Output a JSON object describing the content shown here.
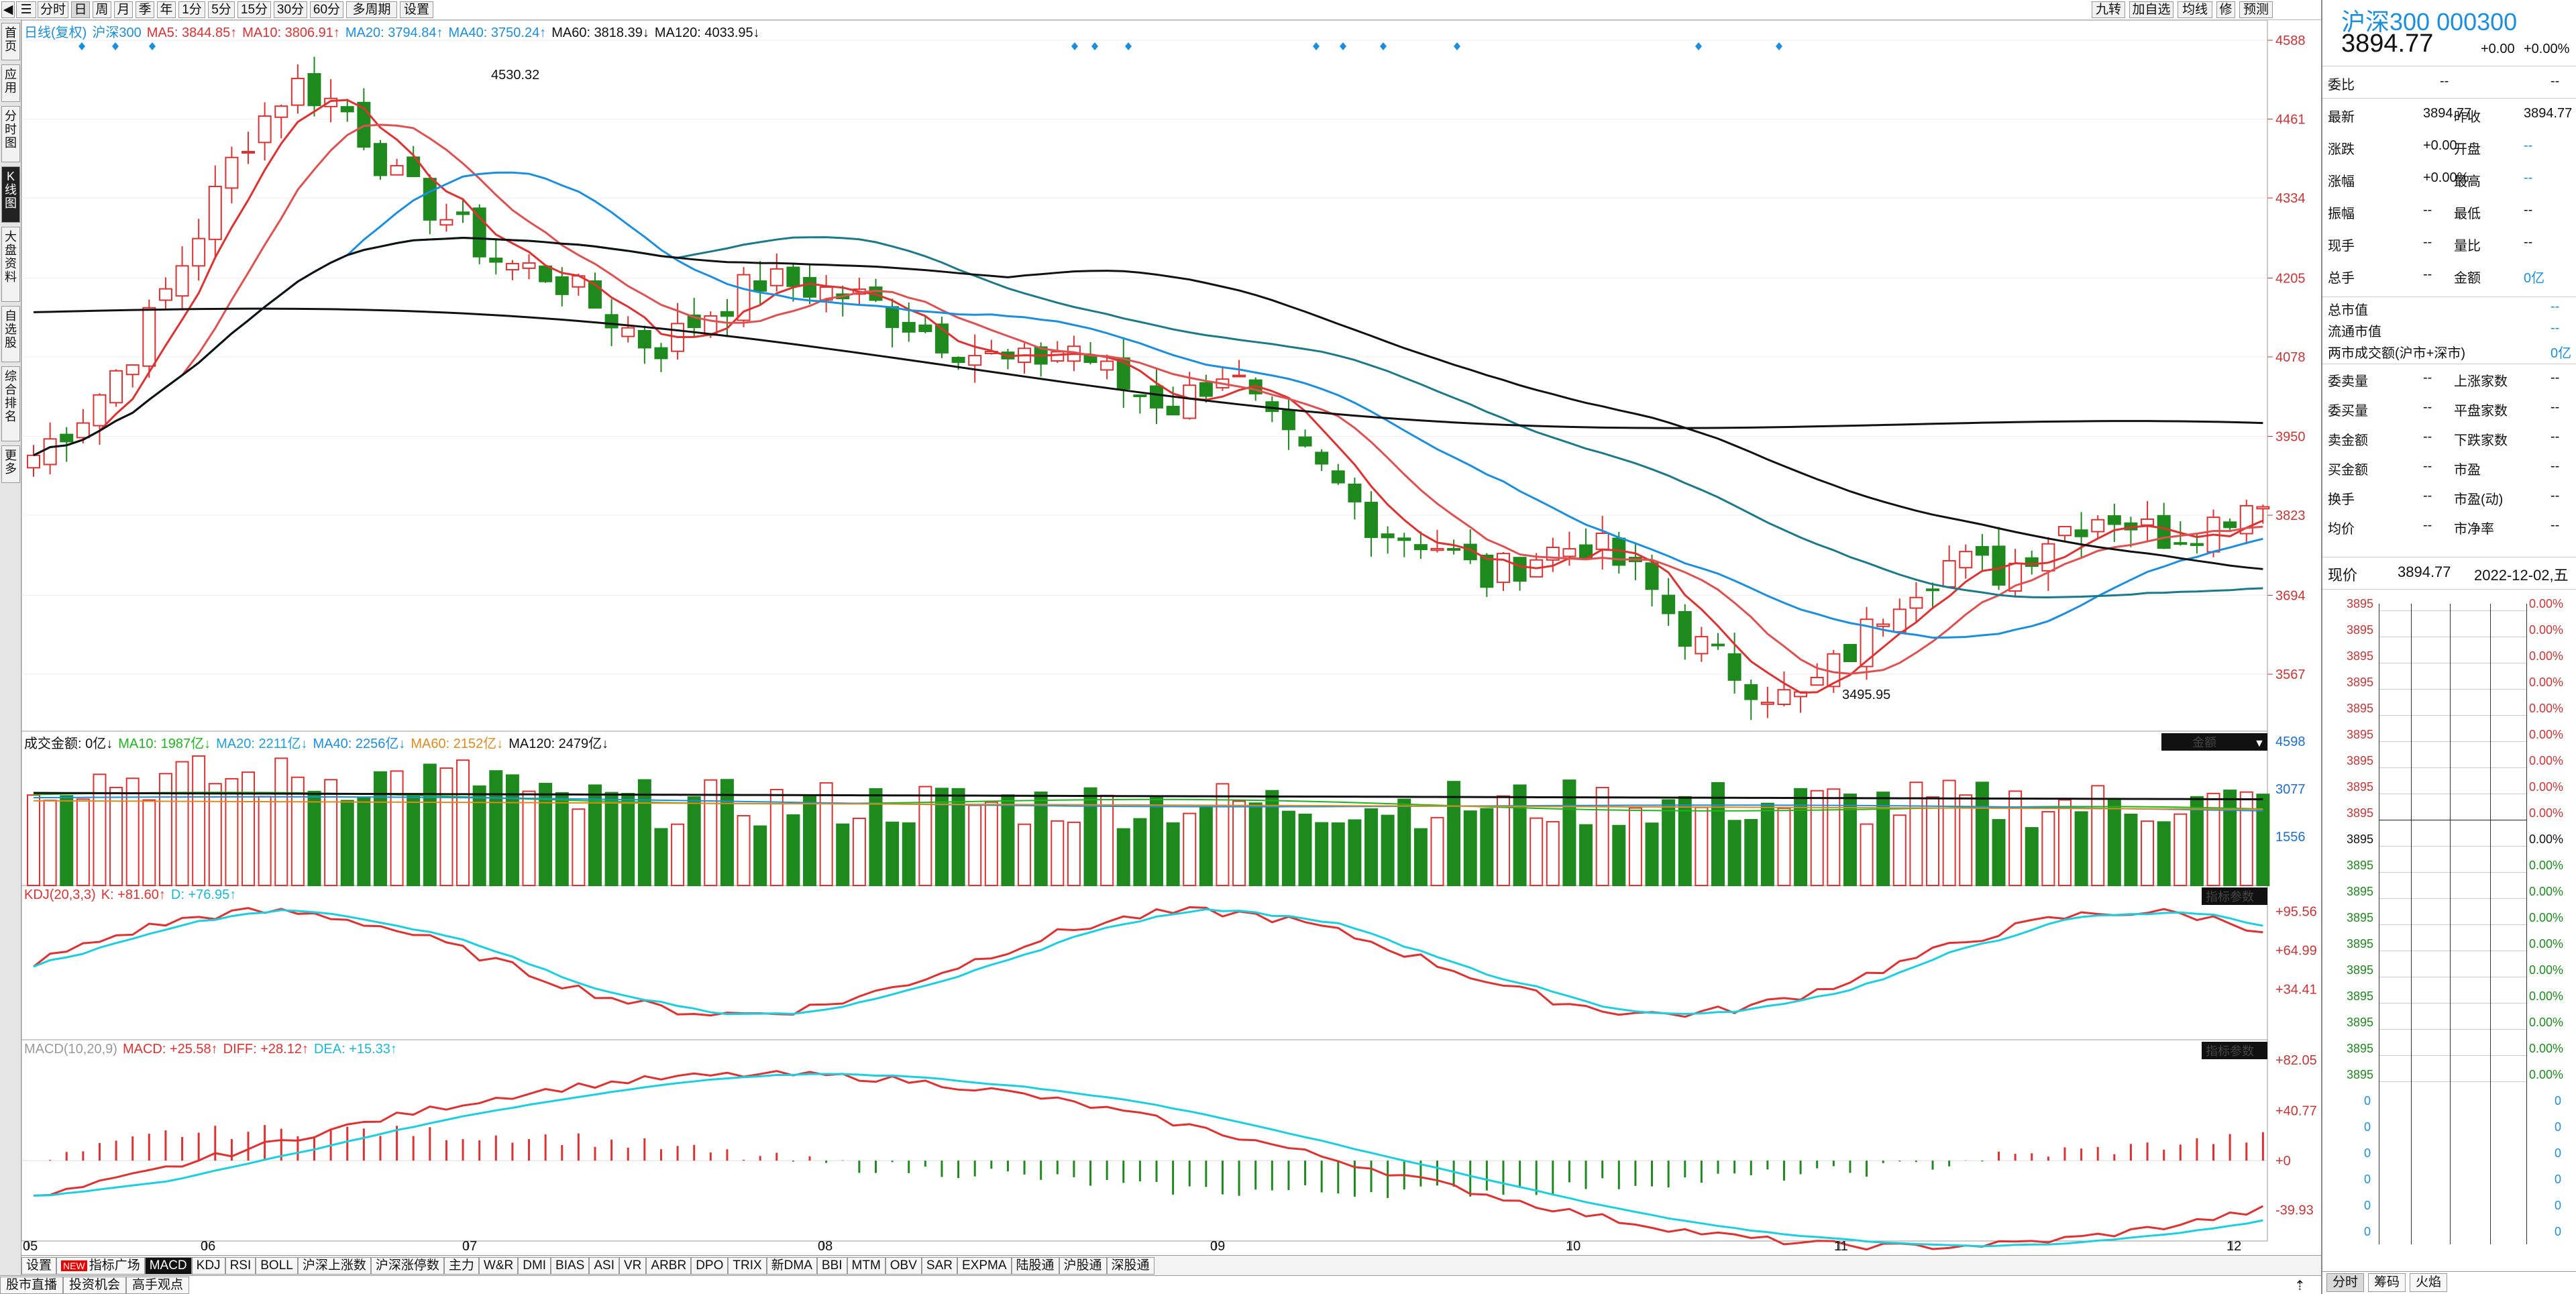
{
  "toolbar": {
    "left_items": [
      "分时",
      "日",
      "周",
      "月",
      "季",
      "年",
      "1分",
      "5分",
      "15分",
      "30分",
      "60分",
      "多周期",
      "设置"
    ],
    "active_item": "日",
    "right_items": [
      "九转",
      "加自选",
      "均线",
      "修",
      "预测"
    ]
  },
  "left_sidebar": {
    "tabs": [
      "首页",
      "应用",
      "分时图",
      "K线图",
      "大盘资料",
      "自选股",
      "综合排名",
      "更多"
    ],
    "active_tab": "K线图"
  },
  "main_legend": {
    "title": "日线(复权)",
    "name": "沪深300",
    "items": [
      {
        "text": "MA5: 3844.85↑",
        "color": "#e03030"
      },
      {
        "text": "MA10: 3806.91↑",
        "color": "#e03030"
      },
      {
        "text": "MA20: 3794.84↑",
        "color": "#1a8fe0"
      },
      {
        "text": "MA40: 3750.24↑",
        "color": "#1a8fe0"
      },
      {
        "text": "MA60: 3818.39↓",
        "color": "#111111"
      },
      {
        "text": "MA120: 4033.95↓",
        "color": "#111111"
      }
    ],
    "tool_icons": [
      "eye-icon",
      "hand-icon",
      "undo-icon",
      "redo-icon",
      "lock-icon",
      "zoom-in-icon",
      "zoom-out-icon"
    ]
  },
  "price_axis": [
    "4588",
    "4461",
    "4334",
    "4205",
    "4078",
    "3950",
    "3823",
    "3694",
    "3567"
  ],
  "annotations": {
    "high": "4530.32",
    "low": "3495.95"
  },
  "volume_legend": {
    "items": [
      {
        "text": "成交金额: 0亿↓",
        "color": "#111111"
      },
      {
        "text": "MA10: 1987亿↓",
        "color": "#1ab81a"
      },
      {
        "text": "MA20: 2211亿↓",
        "color": "#1aa0e0"
      },
      {
        "text": "MA40: 2256亿↓",
        "color": "#1a8fe0"
      },
      {
        "text": "MA60: 2152亿↓",
        "color": "#e08a1a"
      },
      {
        "text": "MA120: 2479亿↓",
        "color": "#111111"
      }
    ],
    "unit_button": "金额",
    "axis": [
      "4598",
      "3077",
      "1556"
    ]
  },
  "kdj_legend": {
    "items": [
      {
        "text": "KDJ(20,3,3)",
        "color": "#e03030"
      },
      {
        "text": "K: +81.60↑",
        "color": "#e03030"
      },
      {
        "text": "D: +76.95↑",
        "color": "#1ab8d8"
      }
    ],
    "param_button": "指标参数",
    "axis": [
      "+95.56",
      "+64.99",
      "+34.41"
    ]
  },
  "macd_legend": {
    "items": [
      {
        "text": "MACD(10,20,9)",
        "color": "#999999"
      },
      {
        "text": "MACD: +25.58↑",
        "color": "#e03030"
      },
      {
        "text": "DIFF: +28.12↑",
        "color": "#e03030"
      },
      {
        "text": "DEA: +15.33↑",
        "color": "#1ab8d8"
      }
    ],
    "param_button": "指标参数",
    "axis": [
      "+82.05",
      "+40.77",
      "+0",
      "-39.93"
    ]
  },
  "x_axis": [
    "05",
    "06",
    "07",
    "08",
    "09",
    "10",
    "11",
    "12"
  ],
  "indicator_tabs": [
    "设置",
    "指标广场",
    "MACD",
    "KDJ",
    "RSI",
    "BOLL",
    "沪深上涨数",
    "沪深涨停数",
    "主力",
    "W&R",
    "DMI",
    "BIAS",
    "ASI",
    "VR",
    "ARBR",
    "DPO",
    "TRIX",
    "新DMA",
    "BBI",
    "MTM",
    "OBV",
    "SAR",
    "EXPMA",
    "陆股通",
    "沪股通",
    "深股通"
  ],
  "active_indicator": "MACD",
  "new_badge": "NEW",
  "status_buttons": [
    "股市直播",
    "投资机会",
    "高手观点"
  ],
  "quote": {
    "name": "沪深300 000300",
    "price": "3894.77",
    "change": "+0.00",
    "change_pct": "+0.00%",
    "weibi_label": "委比",
    "weibi": "--",
    "weibi2": "--",
    "rows": [
      {
        "l1": "最新",
        "v1": "3894.77",
        "l2": "昨收",
        "v2": "3894.77"
      },
      {
        "l1": "涨跌",
        "v1": "+0.00",
        "l2": "开盘",
        "v2": "--"
      },
      {
        "l1": "涨幅",
        "v1": "+0.00%",
        "l2": "最高",
        "v2": "--"
      },
      {
        "l1": "振幅",
        "v1": "--",
        "l2": "最低",
        "v2": "--"
      },
      {
        "l1": "现手",
        "v1": "--",
        "l2": "量比",
        "v2": "--"
      },
      {
        "l1": "总手",
        "v1": "--",
        "l2": "金额",
        "v2": "0亿"
      }
    ],
    "caps": [
      {
        "l": "总市值",
        "v": "--"
      },
      {
        "l": "流通市值",
        "v": "--"
      },
      {
        "l": "两市成交额(沪市+深市)",
        "v": "0亿"
      }
    ],
    "stats": [
      {
        "l1": "委卖量",
        "v1": "--",
        "l2": "上涨家数",
        "v2": "--"
      },
      {
        "l1": "委买量",
        "v1": "--",
        "l2": "平盘家数",
        "v2": "--"
      },
      {
        "l1": "卖金额",
        "v1": "--",
        "l2": "下跌家数",
        "v2": "--"
      },
      {
        "l1": "买金额",
        "v1": "--",
        "l2": "市盈",
        "v2": "--"
      },
      {
        "l1": "换手",
        "v1": "--",
        "l2": "市盈(动)",
        "v2": "--"
      },
      {
        "l1": "均价",
        "v1": "--",
        "l2": "市净率",
        "v2": "--"
      }
    ],
    "now_label": "现价",
    "now_price": "3894.77",
    "now_date": "2022-12-02,五",
    "ladder_prices": [
      "3895",
      "3895",
      "3895",
      "3895",
      "3895",
      "3895",
      "3895",
      "3895",
      "3895",
      "3895",
      "3895",
      "3895",
      "3895",
      "3895",
      "3895",
      "3895",
      "3895",
      "3895",
      "3895"
    ],
    "ladder_pcts": [
      "0.00%",
      "0.00%",
      "0.00%",
      "0.00%",
      "0.00%",
      "0.00%",
      "0.00%",
      "0.00%",
      "0.00%",
      "0.00%",
      "0.00%",
      "0.00%",
      "0.00%",
      "0.00%",
      "0.00%",
      "0.00%",
      "0.00%",
      "0.00%",
      "0.00%"
    ],
    "ladder_zeros": [
      "0",
      "0",
      "0",
      "0",
      "0",
      "0"
    ],
    "bottom_tabs": [
      "分时",
      "筹码",
      "火焰"
    ]
  },
  "colors": {
    "up": "#e03030",
    "down": "#1e8a1e",
    "ma5": "#e03030",
    "ma20": "#1a8fe0",
    "ma40": "#1a8fe0",
    "ma60": "#111111",
    "kline_k": "#e03030",
    "kline_d": "#1ad0e0"
  }
}
